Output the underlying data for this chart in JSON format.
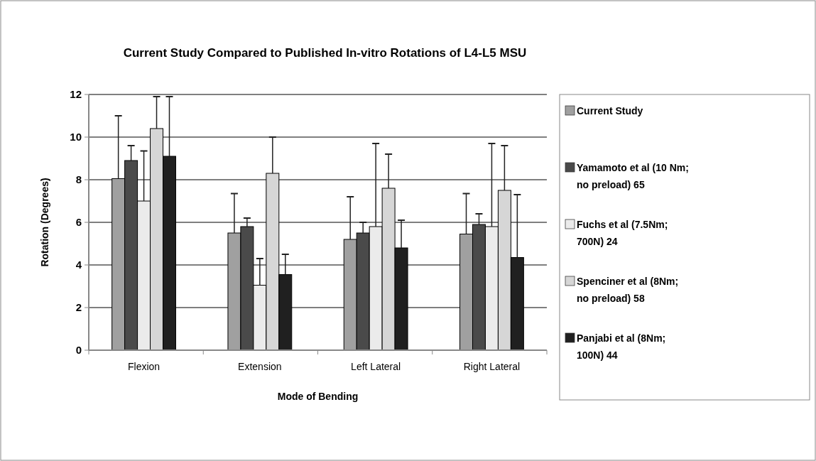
{
  "chart_data": {
    "type": "bar",
    "title": "Current Study Compared to Published In-vitro Rotations of L4-L5 MSU",
    "xlabel": "Mode of Bending",
    "ylabel": "Rotation (Degrees)",
    "categories": [
      "Flexion",
      "Extension",
      "Left Lateral",
      "Right Lateral"
    ],
    "series": [
      {
        "name": "Current Study",
        "color": "#a0a0a0",
        "values": [
          8.05,
          5.5,
          5.2,
          5.45
        ],
        "errors": [
          [
            8.05,
            11
          ],
          [
            5.5,
            7.35
          ],
          [
            5.2,
            7.2
          ],
          [
            5.45,
            7.35
          ]
        ]
      },
      {
        "name": "Yamamoto et al (10 Nm; no preload) 65",
        "color": "#4a4a4a",
        "values": [
          8.9,
          5.8,
          5.5,
          5.9
        ],
        "errors": [
          [
            8.9,
            9.6
          ],
          [
            5.8,
            6.2
          ],
          [
            5.5,
            6.0
          ],
          [
            5.9,
            6.4
          ]
        ]
      },
      {
        "name": "Fuchs et al (7.5Nm; 700N) 24",
        "color": "#ebebeb",
        "values": [
          7.0,
          3.05,
          5.8,
          5.8
        ],
        "errors": [
          [
            7.0,
            9.35
          ],
          [
            3.05,
            4.3
          ],
          [
            5.8,
            9.7
          ],
          [
            5.8,
            9.7
          ]
        ]
      },
      {
        "name": "Spenciner et al (8Nm; no preload) 58",
        "color": "#d6d6d6",
        "values": [
          10.4,
          8.3,
          7.6,
          7.5
        ],
        "errors": [
          [
            10.4,
            11.9
          ],
          [
            8.3,
            10.0
          ],
          [
            7.6,
            9.2
          ],
          [
            7.5,
            9.6
          ]
        ]
      },
      {
        "name": "Panjabi et al (8Nm; 100N) 44",
        "color": "#202020",
        "values": [
          9.1,
          3.55,
          4.8,
          4.35
        ],
        "errors": [
          [
            9.1,
            11.9
          ],
          [
            3.55,
            4.5
          ],
          [
            4.8,
            6.1
          ],
          [
            4.35,
            7.3
          ]
        ]
      }
    ],
    "ylim": [
      0,
      12
    ],
    "yticks": [
      0,
      2,
      4,
      6,
      8,
      10,
      12
    ],
    "grid": "y",
    "legend": "right"
  }
}
